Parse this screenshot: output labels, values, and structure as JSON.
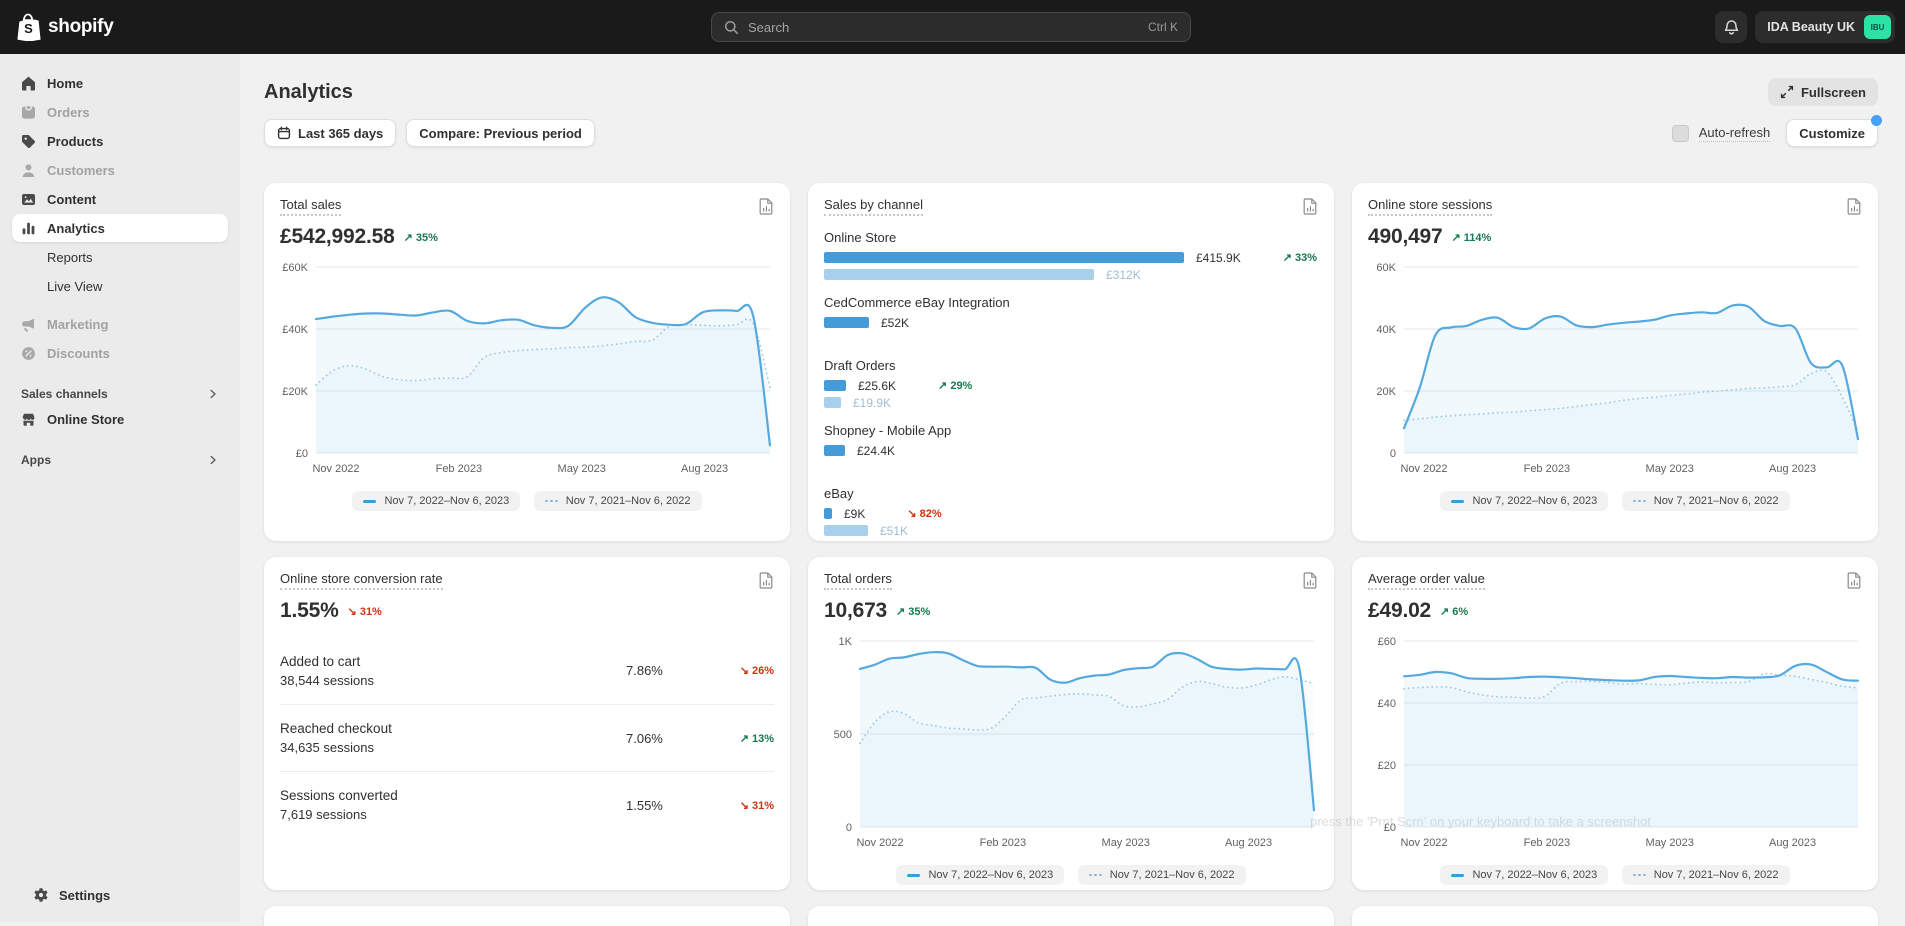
{
  "topbar": {
    "logo_text": "shopify",
    "search_placeholder": "Search",
    "search_shortcut": "Ctrl K",
    "store_name": "IDA Beauty UK",
    "store_initials": "IBU"
  },
  "sidebar": {
    "items": [
      {
        "id": "home",
        "label": "Home",
        "state": "normal"
      },
      {
        "id": "orders",
        "label": "Orders",
        "state": "disabled"
      },
      {
        "id": "products",
        "label": "Products",
        "state": "normal"
      },
      {
        "id": "customers",
        "label": "Customers",
        "state": "disabled"
      },
      {
        "id": "content",
        "label": "Content",
        "state": "normal"
      },
      {
        "id": "analytics",
        "label": "Analytics",
        "state": "active"
      },
      {
        "id": "reports",
        "label": "Reports",
        "state": "sub"
      },
      {
        "id": "live-view",
        "label": "Live View",
        "state": "sub"
      },
      {
        "id": "marketing",
        "label": "Marketing",
        "state": "disabled"
      },
      {
        "id": "discounts",
        "label": "Discounts",
        "state": "disabled"
      }
    ],
    "sales_channels_header": "Sales channels",
    "online_store_label": "Online Store",
    "apps_header": "Apps",
    "settings_label": "Settings"
  },
  "header": {
    "title": "Analytics",
    "fullscreen_label": "Fullscreen"
  },
  "toolbar": {
    "date_range_label": "Last 365 days",
    "compare_label": "Compare: Previous period",
    "auto_refresh_label": "Auto-refresh",
    "customize_label": "Customize"
  },
  "legend": {
    "current": "Nov 7, 2022–Nov 6, 2023",
    "previous": "Nov 7, 2021–Nov 6, 2022"
  },
  "cards": {
    "total_sales": {
      "title": "Total sales",
      "value": "£542,992.58",
      "delta": "35%",
      "delta_dir": "up"
    },
    "sales_by_channel": {
      "title": "Sales by channel"
    },
    "sessions": {
      "title": "Online store sessions",
      "value": "490,497",
      "delta": "114%",
      "delta_dir": "up"
    },
    "conversion": {
      "title": "Online store conversion rate",
      "value": "1.55%",
      "delta": "31%",
      "delta_dir": "down"
    },
    "orders": {
      "title": "Total orders",
      "value": "10,673",
      "delta": "35%",
      "delta_dir": "up"
    },
    "aov": {
      "title": "Average order value",
      "value": "£49.02",
      "delta": "6%",
      "delta_dir": "up"
    }
  },
  "colors": {
    "line_current": "#55a9de",
    "line_previous": "#a4c9e3",
    "bar_current": "#459bd7",
    "bar_previous": "#a8d0ec",
    "delta_up": "#157a4e",
    "delta_down": "#d0330f",
    "accent_dot": "#47a1f5",
    "avatar_green": "#2be3a4"
  },
  "chart_data": [
    {
      "id": "total-sales",
      "type": "line",
      "title": "Total sales",
      "ymax": 60,
      "yticks": [
        {
          "v": 60,
          "label": "£60K"
        },
        {
          "v": 40,
          "label": "£40K"
        },
        {
          "v": 20,
          "label": "£20K"
        },
        {
          "v": 0,
          "label": "£0"
        }
      ],
      "xlabels": [
        "Nov 2022",
        "Feb 2023",
        "May 2023",
        "Aug 2023"
      ],
      "series": [
        {
          "name": "Nov 7, 2022–Nov 6, 2023",
          "style": "solid",
          "values": [
            43.2,
            44,
            44.6,
            45,
            45,
            44.6,
            44.4,
            45.4,
            45.8,
            42.6,
            41.8,
            42.8,
            43,
            41.2,
            40.4,
            41,
            46.8,
            50.2,
            48.6,
            43.8,
            42,
            41.4,
            41.6,
            45.4,
            46,
            45.8,
            44.2,
            2.5
          ]
        },
        {
          "name": "Nov 7, 2021–Nov 6, 2022",
          "style": "dotted",
          "values": [
            22,
            26.5,
            28.2,
            27,
            24.6,
            23.6,
            23.4,
            24,
            24.2,
            24.6,
            30.8,
            32.4,
            33,
            33.4,
            33.6,
            34,
            34.2,
            34.6,
            35.2,
            36,
            36.4,
            40.8,
            41.4,
            41.2,
            41,
            41.4,
            41.8,
            21
          ]
        }
      ]
    },
    {
      "id": "sales-by-channel",
      "type": "bar",
      "title": "Sales by channel",
      "max_value_k": 415.9,
      "channels": [
        {
          "name": "Online Store",
          "current_label": "£415.9K",
          "current_pct": 100,
          "delta": "33%",
          "delta_dir": "up",
          "previous_label": "£312K",
          "previous_pct": 75
        },
        {
          "name": "CedCommerce eBay Integration",
          "current_label": "£52K",
          "current_pct": 12.5
        },
        {
          "name": "Draft Orders",
          "current_label": "£25.6K",
          "current_pct": 6.2,
          "delta": "29%",
          "delta_dir": "up",
          "previous_label": "£19.9K",
          "previous_pct": 4.8
        },
        {
          "name": "Shopney - Mobile App",
          "current_label": "£24.4K",
          "current_pct": 5.9
        },
        {
          "name": "eBay",
          "current_label": "£9K",
          "current_pct": 2.2,
          "delta": "82%",
          "delta_dir": "down",
          "previous_label": "£51K",
          "previous_pct": 12.3
        }
      ]
    },
    {
      "id": "sessions",
      "type": "line",
      "title": "Online store sessions",
      "ymax": 60,
      "yticks": [
        {
          "v": 60,
          "label": "60K"
        },
        {
          "v": 40,
          "label": "40K"
        },
        {
          "v": 20,
          "label": "20K"
        },
        {
          "v": 0,
          "label": "0"
        }
      ],
      "xlabels": [
        "Nov 2022",
        "Feb 2023",
        "May 2023",
        "Aug 2023"
      ],
      "series": [
        {
          "name": "Nov 7, 2022–Nov 6, 2023",
          "style": "solid",
          "values": [
            8,
            21,
            38,
            40.5,
            41,
            43,
            43.6,
            40.6,
            40.2,
            43.4,
            44,
            41.2,
            40.6,
            41.4,
            42,
            42.4,
            43,
            44.4,
            45,
            45.4,
            45.2,
            47.6,
            47.2,
            42.6,
            41,
            40.2,
            29,
            27.6,
            28.2,
            4.5
          ]
        },
        {
          "name": "Nov 7, 2021–Nov 6, 2022",
          "style": "dotted",
          "values": [
            10.5,
            11,
            11.6,
            12,
            12.4,
            12.6,
            13,
            13.2,
            13.6,
            14,
            14.4,
            15,
            15.6,
            16.2,
            17,
            17.6,
            18,
            18.6,
            19,
            19.6,
            20,
            20.4,
            20.8,
            21,
            21.4,
            22,
            25.6,
            26.2,
            18,
            7
          ]
        }
      ]
    },
    {
      "id": "conversion-funnel",
      "type": "table",
      "title": "Online store conversion rate",
      "rows": [
        {
          "label": "Added to cart",
          "sessions": "38,544 sessions",
          "rate": "7.86%",
          "delta": "26%",
          "delta_dir": "down"
        },
        {
          "label": "Reached checkout",
          "sessions": "34,635 sessions",
          "rate": "7.06%",
          "delta": "13%",
          "delta_dir": "up"
        },
        {
          "label": "Sessions converted",
          "sessions": "7,619 sessions",
          "rate": "1.55%",
          "delta": "31%",
          "delta_dir": "down"
        }
      ]
    },
    {
      "id": "orders",
      "type": "line",
      "title": "Total orders",
      "ymax": 1000,
      "yticks": [
        {
          "v": 1000,
          "label": "1K"
        },
        {
          "v": 500,
          "label": "500"
        },
        {
          "v": 0,
          "label": "0"
        }
      ],
      "xlabels": [
        "Nov 2022",
        "Feb 2023",
        "May 2023",
        "Aug 2023"
      ],
      "series": [
        {
          "name": "Nov 7, 2022–Nov 6, 2023",
          "style": "solid",
          "values": [
            850,
            872,
            905,
            912,
            930,
            940,
            934,
            898,
            866,
            862,
            862,
            858,
            856,
            792,
            776,
            800,
            814,
            820,
            844,
            854,
            862,
            924,
            934,
            904,
            862,
            850,
            846,
            852,
            850,
            848,
            852,
            90
          ]
        },
        {
          "name": "Nov 7, 2021–Nov 6, 2022",
          "style": "dotted",
          "values": [
            450,
            562,
            620,
            610,
            560,
            546,
            532,
            528,
            522,
            532,
            600,
            684,
            694,
            704,
            712,
            716,
            710,
            702,
            652,
            646,
            662,
            686,
            752,
            782,
            772,
            752,
            748,
            762,
            790,
            808,
            792,
            772
          ]
        }
      ]
    },
    {
      "id": "aov",
      "type": "line",
      "title": "Average order value",
      "ymax": 60,
      "yticks": [
        {
          "v": 60,
          "label": "£60"
        },
        {
          "v": 40,
          "label": "£40"
        },
        {
          "v": 20,
          "label": "£20"
        },
        {
          "v": 0,
          "label": "£0"
        }
      ],
      "xlabels": [
        "Nov 2022",
        "Feb 2023",
        "May 2023",
        "Aug 2023"
      ],
      "series": [
        {
          "name": "Nov 7, 2022–Nov 6, 2023",
          "style": "solid",
          "values": [
            48.6,
            49.1,
            50,
            49.6,
            48.1,
            47.8,
            47.8,
            48,
            48.4,
            48.5,
            48.3,
            48,
            47.6,
            47.4,
            47.2,
            47.3,
            48.4,
            48.7,
            48.4,
            48.1,
            48,
            48.4,
            48.2,
            48.3,
            48.9,
            52,
            52.4,
            50,
            47.6,
            47.2
          ]
        },
        {
          "name": "Nov 7, 2021–Nov 6, 2022",
          "style": "dotted",
          "values": [
            44.6,
            45,
            45.2,
            45,
            43.6,
            42.6,
            42,
            41.9,
            41.6,
            42.1,
            46.4,
            46.9,
            47,
            46.6,
            46.1,
            46.3,
            46,
            45.9,
            46.4,
            46.8,
            46.5,
            46.6,
            46.9,
            49.4,
            49,
            48.6,
            47.6,
            46.6,
            45.4,
            44.9
          ]
        }
      ]
    }
  ],
  "watermark": "press the 'Prnt Scrn' on your keyboard to take a screenshot"
}
